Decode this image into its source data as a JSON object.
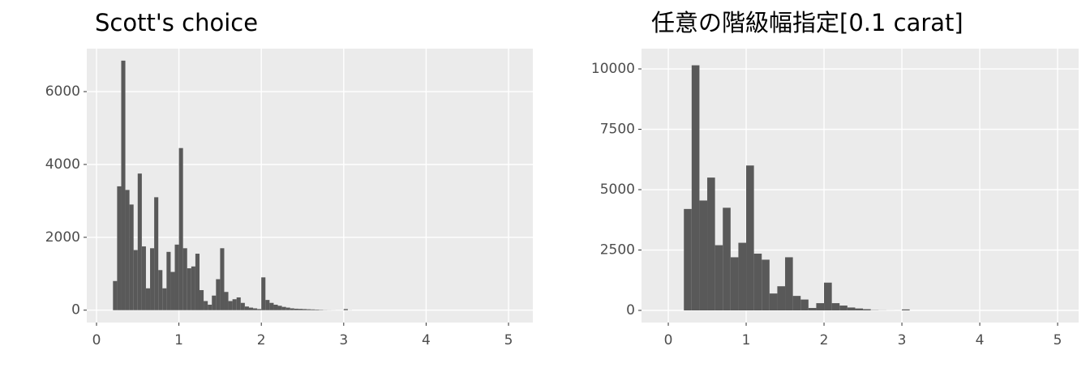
{
  "chart_data": [
    {
      "type": "histogram",
      "title": "Scott's choice",
      "color": "#595959",
      "grid": true,
      "bins": [
        0.2,
        0.25,
        0.3,
        0.35,
        0.4,
        0.45,
        0.5,
        0.55,
        0.6,
        0.65,
        0.7,
        0.75,
        0.8,
        0.85,
        0.9,
        0.95,
        1.0,
        1.05,
        1.1,
        1.15,
        1.2,
        1.25,
        1.3,
        1.35,
        1.4,
        1.45,
        1.5,
        1.55,
        1.6,
        1.65,
        1.7,
        1.75,
        1.8,
        1.85,
        1.9,
        1.95,
        2.0,
        2.05,
        2.1,
        2.15,
        2.2,
        2.25,
        2.3,
        2.35,
        2.4,
        2.45,
        2.5,
        2.55,
        2.6,
        2.65,
        2.7,
        2.75,
        2.8,
        2.85,
        2.9,
        2.95,
        3.0,
        3.05,
        3.1,
        3.15,
        3.2,
        3.25,
        3.3,
        3.35,
        3.4,
        3.45,
        3.5,
        3.55,
        3.6,
        3.65,
        3.7,
        3.75,
        3.8,
        3.85,
        3.9,
        3.95,
        4.0,
        4.05,
        4.1,
        4.15,
        4.2,
        4.25,
        4.3,
        4.35,
        4.4,
        4.45,
        4.5,
        4.55,
        4.6,
        4.65,
        4.7,
        4.75,
        4.8,
        4.85,
        4.9,
        4.95,
        5.0,
        5.05
      ],
      "values": [
        800,
        3400,
        6850,
        3300,
        2900,
        1650,
        3750,
        1750,
        600,
        1700,
        3100,
        1100,
        600,
        1600,
        1050,
        1800,
        4450,
        1700,
        1150,
        1200,
        1550,
        550,
        250,
        150,
        400,
        850,
        1700,
        500,
        250,
        300,
        350,
        200,
        100,
        70,
        50,
        30,
        900,
        280,
        200,
        150,
        120,
        90,
        70,
        50,
        40,
        35,
        30,
        25,
        20,
        15,
        10,
        5,
        3,
        2,
        1,
        1,
        30,
        2,
        0,
        0,
        0,
        0,
        0,
        0,
        0,
        0,
        0,
        0,
        0,
        0,
        0,
        0,
        0,
        0,
        0,
        0,
        0,
        0,
        0,
        0,
        0,
        0,
        0,
        0,
        0,
        0,
        0,
        0,
        0,
        0,
        0,
        0,
        0,
        0,
        0,
        0,
        0
      ],
      "xlim": [
        -0.118,
        5.295
      ],
      "xticks": [
        0,
        1,
        2,
        3,
        4,
        5
      ],
      "ylim": [
        -340,
        7180
      ],
      "yticks": [
        0,
        2000,
        4000,
        6000
      ]
    },
    {
      "type": "histogram",
      "title": "任意の階級幅指定[0.1 carat]",
      "color": "#595959",
      "grid": true,
      "bins": [
        0.2,
        0.3,
        0.4,
        0.5,
        0.6,
        0.7,
        0.8,
        0.9,
        1.0,
        1.1,
        1.2,
        1.3,
        1.4,
        1.5,
        1.6,
        1.7,
        1.8,
        1.9,
        2.0,
        2.1,
        2.2,
        2.3,
        2.4,
        2.5,
        2.6,
        2.7,
        2.8,
        2.9,
        3.0,
        3.1,
        3.2,
        3.3,
        3.4,
        3.5,
        3.6,
        3.7,
        3.8,
        3.9,
        4.0,
        4.1,
        4.2,
        4.3,
        4.4,
        4.5,
        4.6,
        4.7,
        4.8,
        4.9,
        5.0,
        5.1
      ],
      "values": [
        4200,
        10150,
        4550,
        5500,
        2700,
        4250,
        2200,
        2800,
        6000,
        2350,
        2100,
        700,
        1000,
        2200,
        600,
        450,
        100,
        300,
        1150,
        300,
        200,
        120,
        80,
        50,
        10,
        5,
        2,
        1,
        40,
        0,
        0,
        0,
        0,
        0,
        0,
        0,
        0,
        0,
        0,
        0,
        0,
        0,
        0,
        0,
        0,
        0,
        0,
        0,
        0
      ],
      "xlim": [
        -0.344,
        5.27
      ],
      "xticks": [
        0,
        1,
        2,
        3,
        4,
        5
      ],
      "ylim": [
        -503,
        10840
      ],
      "yticks": [
        0,
        2500,
        5000,
        7500,
        10000
      ]
    }
  ]
}
